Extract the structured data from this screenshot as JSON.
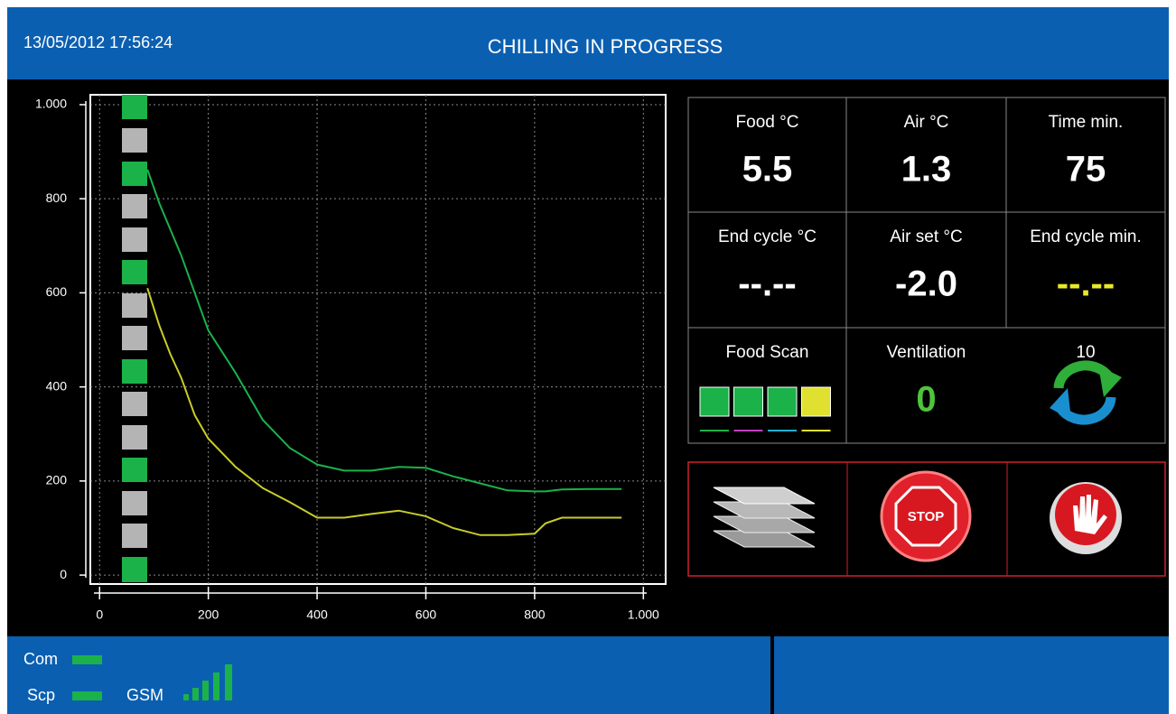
{
  "header": {
    "datetime": "13/05/2012 17:56:24",
    "title": "CHILLING IN PROGRESS"
  },
  "chart_data": {
    "type": "line",
    "x": [
      88,
      110,
      130,
      150,
      175,
      200,
      250,
      300,
      350,
      400,
      450,
      500,
      550,
      600,
      650,
      700,
      750,
      800,
      820,
      850,
      900,
      960
    ],
    "series": [
      {
        "color": "#1bb24a",
        "values": [
          862,
          790,
          735,
          680,
          600,
          520,
          430,
          330,
          270,
          235,
          222,
          222,
          230,
          228,
          210,
          195,
          180,
          178,
          178,
          182,
          183,
          183
        ]
      },
      {
        "color": "#c8cc2a",
        "values": [
          610,
          530,
          470,
          420,
          340,
          290,
          230,
          185,
          155,
          122,
          122,
          130,
          137,
          125,
          100,
          85,
          85,
          88,
          110,
          122,
          122,
          122
        ]
      }
    ],
    "xlim": [
      -17,
      1041
    ],
    "ylim": [
      -19,
      1021
    ],
    "xticks": [
      0,
      200,
      400,
      600,
      800,
      {
        "value": 1000,
        "label": "1.000"
      }
    ],
    "yticks": [
      0,
      200,
      400,
      600,
      800,
      {
        "value": 1000,
        "label": "1.000"
      }
    ],
    "grid": true
  },
  "panel": {
    "cells": [
      {
        "label": "Food °C",
        "value": "5.5",
        "color": "#ffffff"
      },
      {
        "label": "Air °C",
        "value": "1.3",
        "color": "#ffffff"
      },
      {
        "label": "Time  min.",
        "value": "75",
        "color": "#ffffff"
      },
      {
        "label": "End cycle °C",
        "value": "--.--",
        "color": "#ffffff"
      },
      {
        "label": "Air set °C",
        "value": "-2.0",
        "color": "#ffffff"
      },
      {
        "label": "End cycle min.",
        "value": "--.--",
        "color": "#e8e82a"
      },
      {
        "label": "Food Scan"
      },
      {
        "label": "Ventilation",
        "value": "0",
        "color": "#4fc43a"
      },
      {
        "label": "10"
      }
    ],
    "scan": [
      {
        "color": "#1bb24a",
        "line": "#1bb24a"
      },
      {
        "color": "#1bb24a",
        "line": "#c040c0"
      },
      {
        "color": "#1bb24a",
        "line": "#20b0d0"
      },
      {
        "color": "#e0e030",
        "line": "#e0e030"
      }
    ]
  },
  "buttons": {
    "stop": "STOP"
  },
  "status": {
    "com": "Com",
    "scp": "Scp",
    "gsm": "GSM"
  }
}
